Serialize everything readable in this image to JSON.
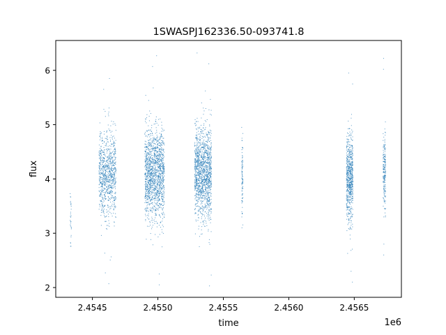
{
  "chart_data": {
    "type": "scatter",
    "title": "1SWASPJ162336.50-093741.8",
    "xlabel": "time",
    "ylabel": "flux",
    "x_offset_label": "1e6",
    "xlim": [
      2.45422,
      2.45686
    ],
    "ylim": [
      1.82,
      6.55
    ],
    "x_ticks": [
      {
        "value": 2.4545,
        "label": "2.4545"
      },
      {
        "value": 2.455,
        "label": "2.4550"
      },
      {
        "value": 2.4555,
        "label": "2.4555"
      },
      {
        "value": 2.456,
        "label": "2.4560"
      },
      {
        "value": 2.4565,
        "label": "2.4565"
      }
    ],
    "y_ticks": [
      {
        "value": 2,
        "label": "2"
      },
      {
        "value": 3,
        "label": "3"
      },
      {
        "value": 4,
        "label": "4"
      },
      {
        "value": 5,
        "label": "5"
      },
      {
        "value": 6,
        "label": "6"
      }
    ],
    "grid": false,
    "legend": "none",
    "marker_color": "#1f77b4",
    "clusters": [
      {
        "x_start": 2.45433,
        "x_end": 2.45434,
        "y_center": 3.3,
        "y_spread": 0.28,
        "y_min": 2.76,
        "y_max": 3.73,
        "n": 30
      },
      {
        "x_start": 2.45455,
        "x_end": 2.45468,
        "y_center": 4.1,
        "y_spread": 0.38,
        "y_min": 2.07,
        "y_max": 5.85,
        "n": 900
      },
      {
        "x_start": 2.4549,
        "x_end": 2.45505,
        "y_center": 4.1,
        "y_spread": 0.42,
        "y_min": 2.05,
        "y_max": 6.27,
        "n": 1500
      },
      {
        "x_start": 2.45528,
        "x_end": 2.45541,
        "y_center": 4.1,
        "y_spread": 0.42,
        "y_min": 2.03,
        "y_max": 6.32,
        "n": 1400
      },
      {
        "x_start": 2.45564,
        "x_end": 2.45565,
        "y_center": 4.0,
        "y_spread": 0.35,
        "y_min": 3.1,
        "y_max": 4.95,
        "n": 90
      },
      {
        "x_start": 2.45644,
        "x_end": 2.45649,
        "y_center": 4.0,
        "y_spread": 0.4,
        "y_min": 2.1,
        "y_max": 5.95,
        "n": 700
      },
      {
        "x_start": 2.45672,
        "x_end": 2.45674,
        "y_center": 4.1,
        "y_spread": 0.36,
        "y_min": 2.6,
        "y_max": 6.22,
        "n": 200
      }
    ]
  }
}
